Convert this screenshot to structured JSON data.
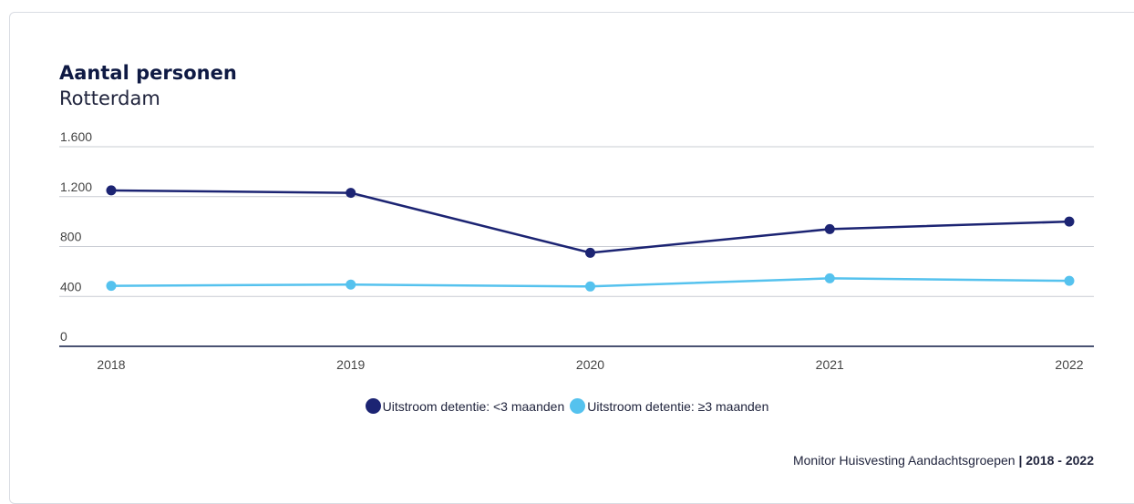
{
  "header": {
    "title": "Aantal personen",
    "subtitle": "Rotterdam"
  },
  "chart_data": {
    "type": "line",
    "title": "Aantal personen",
    "subtitle": "Rotterdam",
    "xlabel": "",
    "ylabel": "",
    "x": [
      "2018",
      "2019",
      "2020",
      "2021",
      "2022"
    ],
    "ylim": [
      0,
      1600
    ],
    "y_ticks": [
      0,
      400,
      800,
      1200,
      1600
    ],
    "y_tick_labels": [
      "0",
      "400",
      "800",
      "1.200",
      "1.600"
    ],
    "grid": true,
    "legend_position": "bottom-center",
    "series": [
      {
        "name": "Uitstroom detentie: <3 maanden",
        "color": "#1c2473",
        "values": [
          1250,
          1230,
          750,
          940,
          1000
        ]
      },
      {
        "name": "Uitstroom detentie: ≥3 maanden",
        "color": "#55c2ee",
        "values": [
          485,
          495,
          480,
          545,
          525
        ]
      }
    ]
  },
  "footer": {
    "source": "Monitor Huisvesting Aandachtsgroepen",
    "separator": "|",
    "period": "2018 - 2022"
  }
}
